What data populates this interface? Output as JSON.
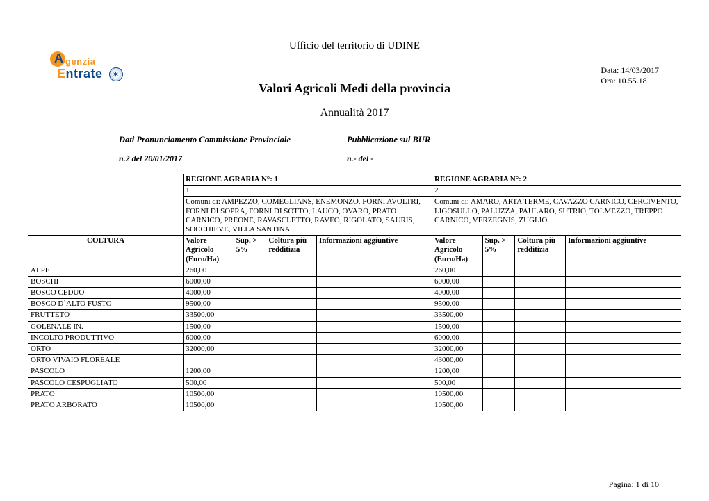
{
  "office_line": "Ufficio del territorio di  UDINE",
  "date_lbl": "Data:",
  "date_val": "14/03/2017",
  "time_lbl": "Ora:",
  "time_val": "10.55.18",
  "title": "Valori Agricoli Medi della provincia",
  "year_line": "Annualità  2017",
  "meta_left_lbl": "Dati Pronunciamento Commissione Provinciale",
  "meta_right_lbl": "Pubblicazione sul BUR",
  "meta_left_val": "n.2 del  20/01/2017",
  "meta_right_val": "n.-  del -",
  "region1_hdr": "REGIONE AGRARIA N°:  1",
  "region2_hdr": "REGIONE AGRARIA N°: 2",
  "region1_sub": "1",
  "region2_sub": "2",
  "region1_comuni": "Comuni di: AMPEZZO, COMEGLIANS, ENEMONZO, FORNI AVOLTRI, FORNI DI SOPRA, FORNI DI SOTTO, LAUCO, OVARO, PRATO CARNICO, PREONE, RAVASCLETTO, RAVEO, RIGOLATO, SAURIS, SOCCHIEVE, VILLA SANTINA",
  "region2_comuni": "Comuni di: AMARO, ARTA TERME, CAVAZZO CARNICO, CERCIVENTO, LIGOSULLO, PALUZZA, PAULARO, SUTRIO, TOLMEZZO, TREPPO CARNICO, VERZEGNIS, ZUGLIO",
  "col_coltura": "COLTURA",
  "col_valore": "Valore Agricolo (Euro/Ha)",
  "col_sup": "Sup. > 5%",
  "col_redd": "Coltura più redditizia",
  "col_info": "Informazioni aggiuntive",
  "rows": [
    {
      "coltura": "ALPE",
      "v1": "260,00",
      "v2": "260,00"
    },
    {
      "coltura": "BOSCHI",
      "v1": "6000,00",
      "v2": "6000,00"
    },
    {
      "coltura": "BOSCO CEDUO",
      "v1": "4000,00",
      "v2": "4000,00"
    },
    {
      "coltura": "BOSCO D`ALTO FUSTO",
      "v1": "9500,00",
      "v2": "9500,00"
    },
    {
      "coltura": "FRUTTETO",
      "v1": "33500,00",
      "v2": "33500,00"
    },
    {
      "coltura": "GOLENALE IN.",
      "v1": "1500,00",
      "v2": "1500,00"
    },
    {
      "coltura": "INCOLTO PRODUTTIVO",
      "v1": "6000,00",
      "v2": "6000,00"
    },
    {
      "coltura": "ORTO",
      "v1": "32000,00",
      "v2": "32000,00"
    },
    {
      "coltura": "ORTO VIVAIO FLOREALE",
      "v1": "",
      "v2": "43000,00"
    },
    {
      "coltura": "PASCOLO",
      "v1": "1200,00",
      "v2": "1200,00"
    },
    {
      "coltura": "PASCOLO CESPUGLIATO",
      "v1": "500,00",
      "v2": "500,00"
    },
    {
      "coltura": "PRATO",
      "v1": "10500,00",
      "v2": "10500,00"
    },
    {
      "coltura": "PRATO ARBORATO",
      "v1": "10500,00",
      "v2": "10500,00"
    }
  ],
  "footer": "Pagina: 1 di 10",
  "logo_text1": "genzia",
  "logo_text2": "ntrate"
}
